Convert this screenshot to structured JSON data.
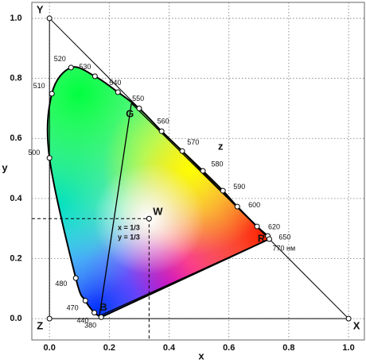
{
  "chart_data": {
    "type": "chromaticity",
    "x_label": "x",
    "y_label": "y",
    "xlim": [
      -0.059,
      1.053
    ],
    "ylim": [
      -0.071,
      1.053
    ],
    "xticks": [
      {
        "value": 0,
        "label": "0.0"
      },
      0.2,
      0.4,
      0.6,
      0.8,
      {
        "value": 1,
        "label": "1.0"
      }
    ],
    "yticks": [
      {
        "value": 0,
        "label": "0.0"
      },
      0.2,
      0.4,
      0.6,
      0.8,
      {
        "value": 1,
        "label": "1.0"
      }
    ],
    "grid": true,
    "locus": {
      "labels": [
        "380",
        "440",
        "470",
        "480",
        "500",
        "510",
        "520",
        "530",
        "540",
        "550",
        "560",
        "570",
        "580",
        "590",
        "600",
        "620",
        "650",
        "770 нм"
      ],
      "x": [
        0.173,
        0.15,
        0.12,
        0.088,
        0.0,
        0.008,
        0.072,
        0.152,
        0.229,
        0.3,
        0.375,
        0.444,
        0.513,
        0.58,
        0.628,
        0.694,
        0.73,
        0.735
      ],
      "y": [
        0.005,
        0.02,
        0.06,
        0.135,
        0.535,
        0.749,
        0.836,
        0.807,
        0.754,
        0.7,
        0.624,
        0.558,
        0.492,
        0.426,
        0.373,
        0.307,
        0.275,
        0.265
      ]
    },
    "points": [
      {
        "label": "Y",
        "x": 0,
        "y": 1
      },
      {
        "label": "Z",
        "x": 0,
        "y": 0
      },
      {
        "label": "X",
        "x": 1,
        "y": 0
      },
      {
        "label": "W",
        "x": 0.333,
        "y": 0.333
      },
      {
        "label": "R",
        "x": 0.735,
        "y": 0.265
      },
      {
        "label": "G",
        "x": 0.274,
        "y": 0.717
      },
      {
        "label": "B",
        "x": 0.167,
        "y": 0.009
      }
    ],
    "annotations": [
      "x = 1/3",
      "y = 1/3",
      "z"
    ]
  }
}
